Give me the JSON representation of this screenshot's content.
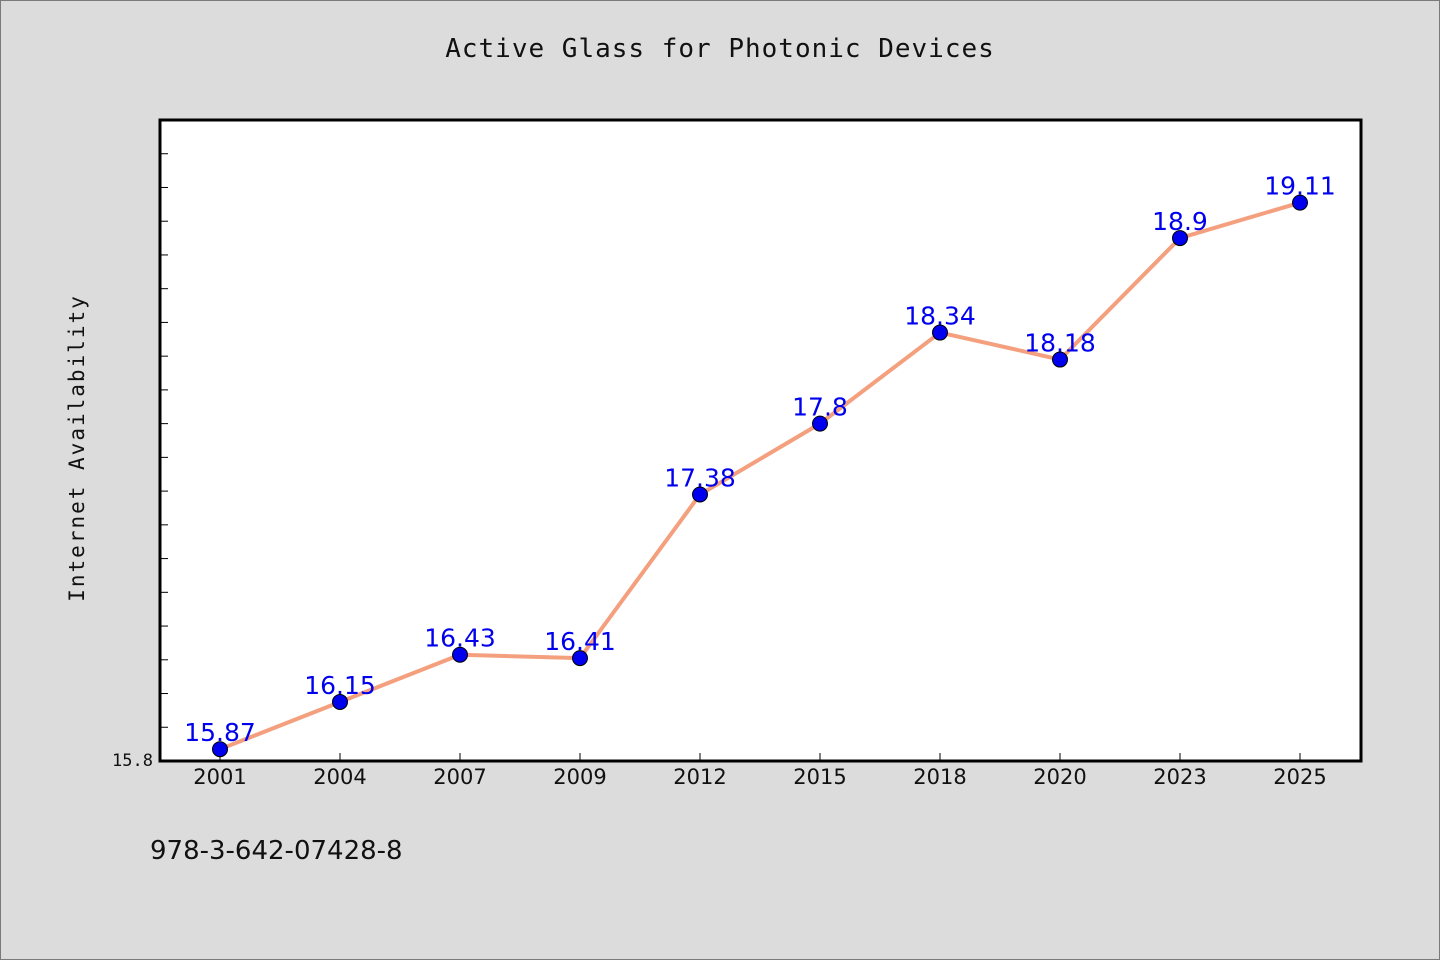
{
  "chart_data": {
    "type": "line",
    "title": "Active Glass for Photonic Devices",
    "xlabel": "",
    "ylabel": "Internet Availability",
    "categories": [
      "2001",
      "2004",
      "2007",
      "2009",
      "2012",
      "2015",
      "2018",
      "2020",
      "2023",
      "2025"
    ],
    "series": [
      {
        "values": [
          15.87,
          16.15,
          16.43,
          16.41,
          17.38,
          17.8,
          18.34,
          18.18,
          18.9,
          19.11
        ],
        "data_labels": [
          "15.87",
          "16.15",
          "16.43",
          "16.41",
          "17.38",
          "17.8",
          "18.34",
          "18.18",
          "18.9",
          "19.11"
        ]
      }
    ],
    "ylim": [
      15.8,
      19.6
    ],
    "ytick_labels": [
      "15.8"
    ],
    "grid": false,
    "legend": "none",
    "colors": {
      "line": "#f4a07e",
      "marker": "#0000ee",
      "data_label": "#0000ee",
      "plot_background": "#ffffff",
      "figure_background": "#dcdcdc"
    }
  },
  "caption": "978-3-642-07428-8"
}
